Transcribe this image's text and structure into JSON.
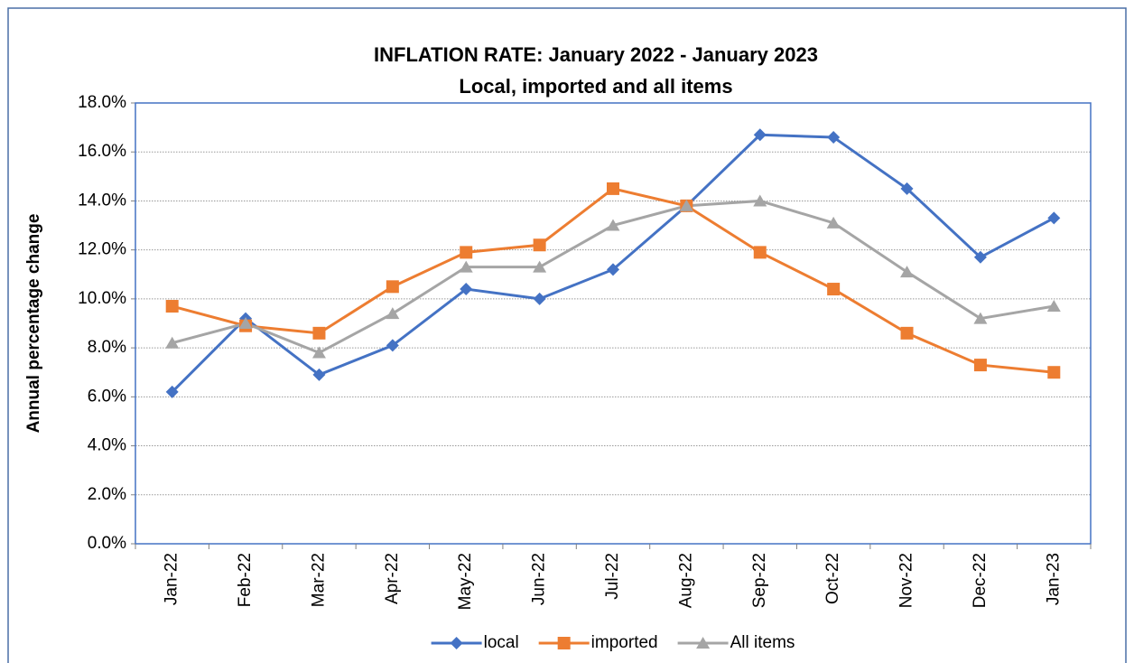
{
  "chart_data": {
    "type": "line",
    "title": "INFLATION RATE: January 2022 - January 2023",
    "subtitle": "Local, imported and all items",
    "y_label": "Annual percentage change",
    "categories": [
      "Jan-22",
      "Feb-22",
      "Mar-22",
      "Apr-22",
      "May-22",
      "Jun-22",
      "Jul-22",
      "Aug-22",
      "Sep-22",
      "Oct-22",
      "Nov-22",
      "Dec-22",
      "Jan-23"
    ],
    "series": [
      {
        "name": "local",
        "color": "#4472c4",
        "marker": "diamond",
        "values": [
          6.2,
          9.2,
          6.9,
          8.1,
          10.4,
          10.0,
          11.2,
          13.8,
          16.7,
          16.6,
          14.5,
          11.7,
          13.3
        ]
      },
      {
        "name": "imported",
        "color": "#ed7d31",
        "marker": "square",
        "values": [
          9.7,
          8.9,
          8.6,
          10.5,
          11.9,
          12.2,
          14.5,
          13.8,
          11.9,
          10.4,
          8.6,
          7.3,
          7.0
        ]
      },
      {
        "name": "All items",
        "color": "#a5a5a5",
        "marker": "triangle",
        "values": [
          8.2,
          9.0,
          7.8,
          9.4,
          11.3,
          11.3,
          13.0,
          13.8,
          14.0,
          13.1,
          11.1,
          9.2,
          9.7
        ]
      }
    ],
    "ylim": [
      0,
      18
    ],
    "yticks": [
      {
        "value": 0,
        "label": "0.0%"
      },
      {
        "value": 2,
        "label": "2.0%"
      },
      {
        "value": 4,
        "label": "4.0%"
      },
      {
        "value": 6,
        "label": "6.0%"
      },
      {
        "value": 8,
        "label": "8.0%"
      },
      {
        "value": 10,
        "label": "10.0%"
      },
      {
        "value": 12,
        "label": "12.0%"
      },
      {
        "value": 14,
        "label": "14.0%"
      },
      {
        "value": 16,
        "label": "16.0%"
      },
      {
        "value": 18,
        "label": "18.0%"
      }
    ],
    "grid": true,
    "legend": "bottom"
  }
}
